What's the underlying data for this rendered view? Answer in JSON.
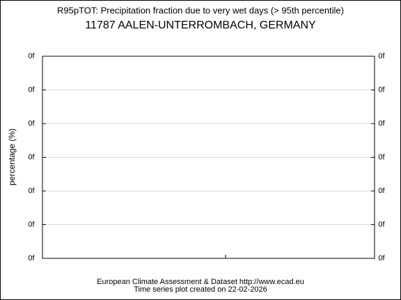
{
  "chart_data": {
    "type": "line",
    "title": "R95pTOT: Precipitation fraction due to very wet days (> 95th percentile)",
    "subtitle": "11787 AALEN-UNTERROMBACH, GERMANY",
    "ylabel": "percentage (%)",
    "series": [],
    "ylim": [
      0,
      6
    ],
    "yticks": [
      {
        "value": 0,
        "label": "0f"
      },
      {
        "value": 1,
        "label": "0f"
      },
      {
        "value": 2,
        "label": "0f"
      },
      {
        "value": 3,
        "label": "0f"
      },
      {
        "value": 4,
        "label": "0f"
      },
      {
        "value": 5,
        "label": "0f"
      },
      {
        "value": 6,
        "label": "0f"
      }
    ],
    "y2lim": [
      0,
      6
    ],
    "y2ticks": [
      {
        "value": 0,
        "label": "0f"
      },
      {
        "value": 1,
        "label": "0f"
      },
      {
        "value": 2,
        "label": "0f"
      },
      {
        "value": 3,
        "label": "0f"
      },
      {
        "value": 4,
        "label": "0f"
      },
      {
        "value": 5,
        "label": "0f"
      },
      {
        "value": 6,
        "label": "0f"
      }
    ],
    "grid": true,
    "footer": [
      "European Climate Assessment & Dataset  http://www.ecad.eu",
      "Time series plot created on 22-02-2026"
    ]
  }
}
